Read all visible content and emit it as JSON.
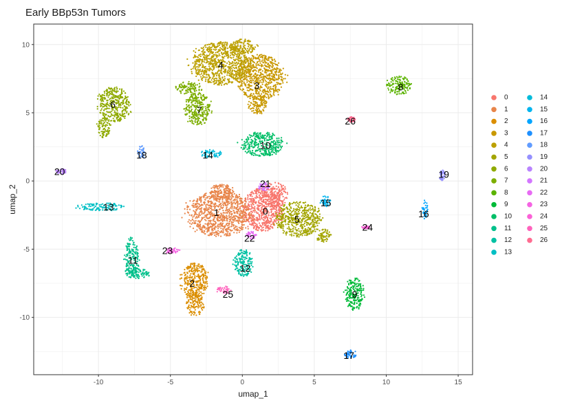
{
  "chart_data": {
    "type": "scatter",
    "title": "Early BBp53n Tumors",
    "xlabel": "umap_1",
    "ylabel": "umap_2",
    "xlim": [
      -14.5,
      16
    ],
    "ylim": [
      -14.2,
      11.5
    ],
    "x_ticks": [
      -10,
      -5,
      0,
      5,
      10,
      15
    ],
    "y_ticks": [
      -10,
      -5,
      0,
      5,
      10
    ],
    "x_tick_labels": [
      "-10",
      "-5",
      "0",
      "5",
      "10",
      "15"
    ],
    "y_tick_labels": [
      "-10",
      "-5",
      "0",
      "5",
      "10"
    ],
    "grid": true,
    "legend_position": "right",
    "clusters": [
      {
        "name": "0",
        "color": "#F8766D",
        "label_pos": [
          1.6,
          -2.2
        ],
        "ellipses": [
          [
            1.4,
            -2.1,
            1.6,
            1.6
          ],
          [
            2.2,
            -1.0,
            1.0,
            0.9
          ]
        ]
      },
      {
        "name": "1",
        "color": "#E8854A",
        "label_pos": [
          -1.8,
          -2.3
        ],
        "ellipses": [
          [
            -1.6,
            -2.4,
            2.4,
            1.7
          ],
          [
            -1.5,
            -0.8,
            1.0,
            0.6
          ]
        ]
      },
      {
        "name": "2",
        "color": "#DB8E00",
        "label_pos": [
          -3.5,
          -7.5
        ],
        "ellipses": [
          [
            -3.3,
            -7.3,
            1.0,
            1.3
          ],
          [
            -3.3,
            -9.0,
            0.7,
            0.9
          ]
        ]
      },
      {
        "name": "3",
        "color": "#C89800",
        "label_pos": [
          1.0,
          7.0
        ],
        "ellipses": [
          [
            1.2,
            7.6,
            1.8,
            1.7
          ],
          [
            1.1,
            5.6,
            0.7,
            0.7
          ]
        ]
      },
      {
        "name": "4",
        "color": "#BCA000",
        "label_pos": [
          -1.5,
          8.5
        ],
        "ellipses": [
          [
            -1.5,
            8.6,
            2.2,
            1.6
          ],
          [
            0.0,
            9.8,
            1.0,
            0.6
          ]
        ]
      },
      {
        "name": "5",
        "color": "#A3A500",
        "label_pos": [
          3.8,
          -2.8
        ],
        "ellipses": [
          [
            3.9,
            -2.8,
            1.7,
            1.3
          ],
          [
            5.6,
            -4.0,
            0.6,
            0.5
          ]
        ]
      },
      {
        "name": "6",
        "color": "#8FAA00",
        "label_pos": [
          -9.0,
          5.6
        ],
        "ellipses": [
          [
            -8.9,
            5.6,
            1.2,
            1.3
          ],
          [
            -9.6,
            3.9,
            0.5,
            0.8
          ]
        ]
      },
      {
        "name": "7",
        "color": "#7CAE00",
        "label_pos": [
          -3.0,
          5.2
        ],
        "ellipses": [
          [
            -3.1,
            5.3,
            1.0,
            1.2
          ],
          [
            -3.7,
            6.8,
            0.9,
            0.5
          ]
        ]
      },
      {
        "name": "8",
        "color": "#5BB300",
        "label_pos": [
          11.0,
          6.9
        ],
        "ellipses": [
          [
            10.9,
            7.0,
            0.9,
            0.7
          ]
        ]
      },
      {
        "name": "9",
        "color": "#00BA38",
        "label_pos": [
          7.8,
          -8.3
        ],
        "ellipses": [
          [
            7.8,
            -8.3,
            0.7,
            1.2
          ]
        ]
      },
      {
        "name": "10",
        "color": "#00BE67",
        "label_pos": [
          1.6,
          2.6
        ],
        "ellipses": [
          [
            1.4,
            2.7,
            1.6,
            0.9
          ]
        ]
      },
      {
        "name": "11",
        "color": "#00C08B",
        "label_pos": [
          -7.6,
          -5.8
        ],
        "ellipses": [
          [
            -7.7,
            -5.6,
            0.5,
            1.5
          ],
          [
            -7.4,
            -6.8,
            1.0,
            0.4
          ]
        ]
      },
      {
        "name": "12",
        "color": "#00C1A3",
        "label_pos": [
          0.2,
          -6.4
        ],
        "ellipses": [
          [
            0.1,
            -6.0,
            0.7,
            1.0
          ]
        ]
      },
      {
        "name": "13",
        "color": "#00BFC4",
        "label_pos": [
          -9.3,
          -1.9
        ],
        "ellipses": [
          [
            -9.8,
            -1.9,
            1.7,
            0.3
          ]
        ]
      },
      {
        "name": "14",
        "color": "#00BBDA",
        "label_pos": [
          -2.4,
          1.9
        ],
        "ellipses": [
          [
            -2.2,
            2.0,
            0.8,
            0.3
          ]
        ]
      },
      {
        "name": "15",
        "color": "#00B4EF",
        "label_pos": [
          5.8,
          -1.6
        ],
        "ellipses": [
          [
            5.8,
            -1.5,
            0.4,
            0.4
          ]
        ]
      },
      {
        "name": "16",
        "color": "#00A5FF",
        "label_pos": [
          12.6,
          -2.4
        ],
        "ellipses": [
          [
            12.7,
            -2.1,
            0.2,
            0.7
          ]
        ]
      },
      {
        "name": "17",
        "color": "#1E90FF",
        "label_pos": [
          7.4,
          -12.8
        ],
        "ellipses": [
          [
            7.5,
            -12.7,
            0.5,
            0.3
          ]
        ]
      },
      {
        "name": "18",
        "color": "#619CFF",
        "label_pos": [
          -7.0,
          1.9
        ],
        "ellipses": [
          [
            -7.0,
            2.1,
            0.3,
            0.5
          ]
        ]
      },
      {
        "name": "19",
        "color": "#9590FF",
        "label_pos": [
          14.0,
          0.5
        ],
        "ellipses": [
          [
            13.9,
            0.4,
            0.2,
            0.4
          ]
        ]
      },
      {
        "name": "20",
        "color": "#B983FF",
        "label_pos": [
          -12.7,
          0.7
        ],
        "ellipses": [
          [
            -12.6,
            0.7,
            0.4,
            0.2
          ]
        ]
      },
      {
        "name": "21",
        "color": "#D376FF",
        "label_pos": [
          1.6,
          -0.2
        ],
        "ellipses": [
          [
            1.5,
            -0.4,
            0.4,
            0.3
          ]
        ]
      },
      {
        "name": "22",
        "color": "#E76BF3",
        "label_pos": [
          0.5,
          -4.2
        ],
        "ellipses": [
          [
            0.6,
            -4.0,
            0.4,
            0.3
          ]
        ]
      },
      {
        "name": "23",
        "color": "#F564E3",
        "label_pos": [
          -5.2,
          -5.1
        ],
        "ellipses": [
          [
            -4.9,
            -5.1,
            0.6,
            0.2
          ]
        ]
      },
      {
        "name": "24",
        "color": "#FB61D7",
        "label_pos": [
          8.7,
          -3.4
        ],
        "ellipses": [
          [
            8.6,
            -3.4,
            0.3,
            0.1
          ]
        ]
      },
      {
        "name": "25",
        "color": "#FF62BC",
        "label_pos": [
          -1.0,
          -8.3
        ],
        "ellipses": [
          [
            -1.3,
            -8.0,
            0.5,
            0.3
          ]
        ]
      },
      {
        "name": "26",
        "color": "#FF6C91",
        "label_pos": [
          7.5,
          4.4
        ],
        "ellipses": [
          [
            7.6,
            4.5,
            0.3,
            0.2
          ]
        ]
      }
    ]
  }
}
